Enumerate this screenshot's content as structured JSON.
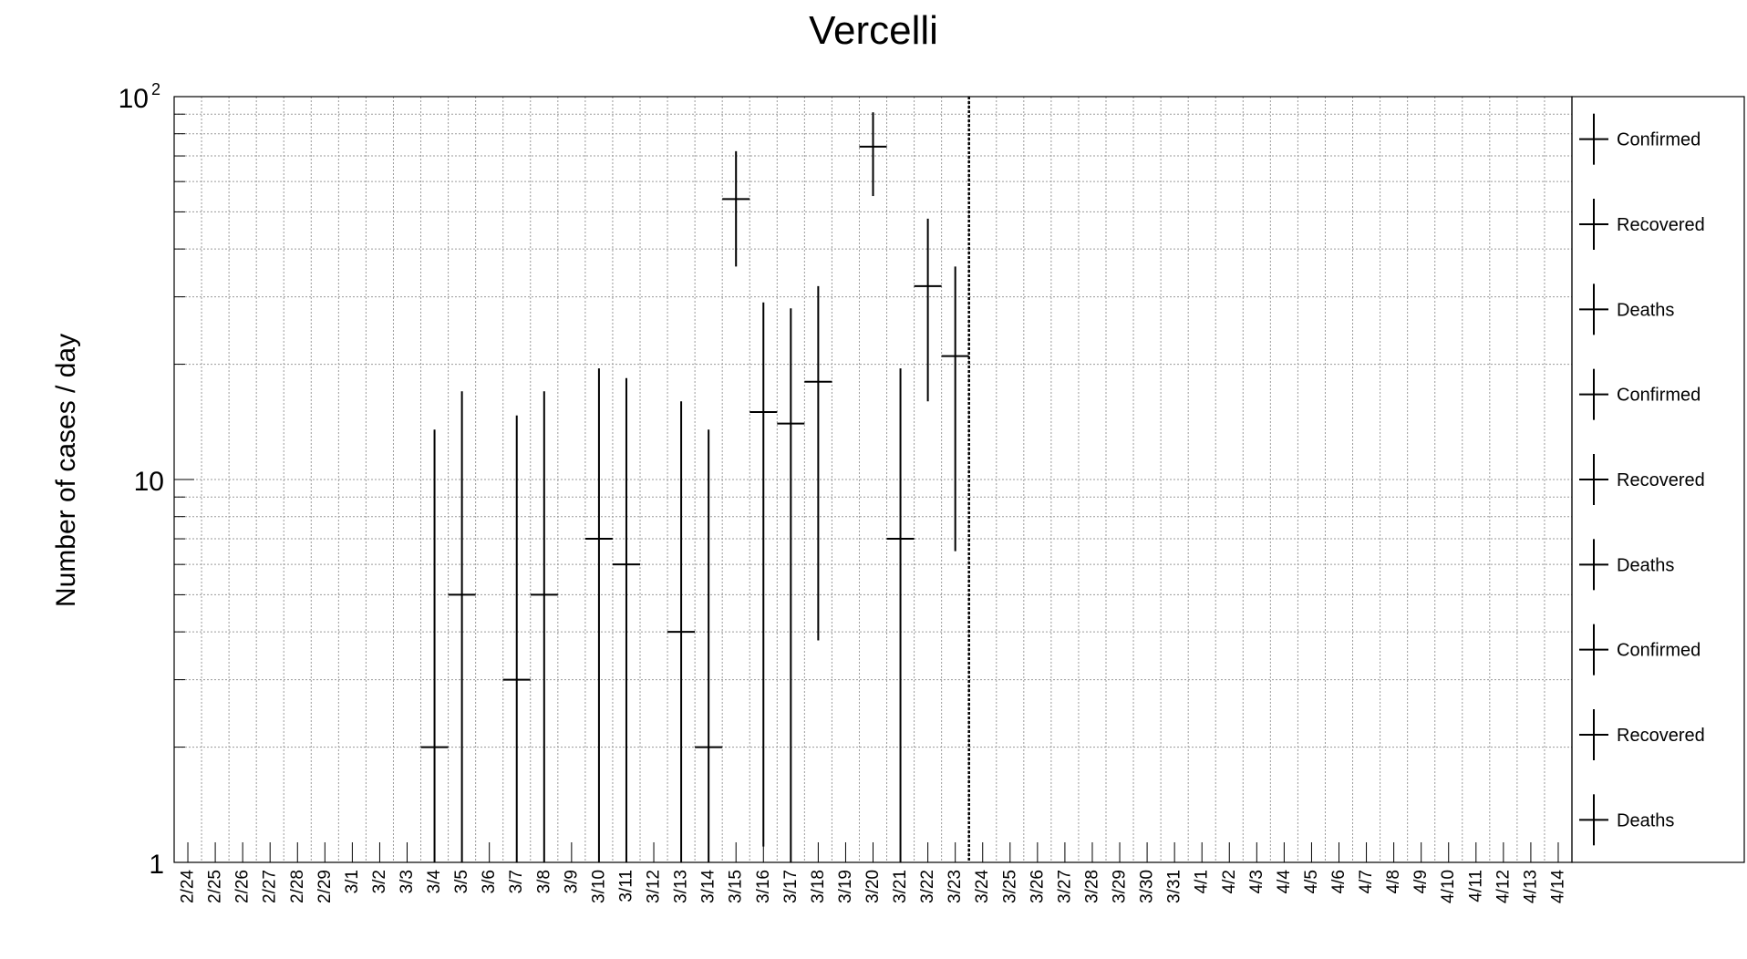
{
  "chart_data": {
    "type": "scatter",
    "title": "Vercelli",
    "xlabel": "",
    "ylabel": "Number of cases / day",
    "y_scale": "log",
    "ylim": [
      1,
      100
    ],
    "y_ticks": {
      "one": "1",
      "ten": "10",
      "hundred_base": "10",
      "hundred_exp": "2"
    },
    "grid": true,
    "legend_position": "right",
    "reference_line_date": "3/23",
    "dates": [
      "2/24",
      "2/25",
      "2/26",
      "2/27",
      "2/28",
      "2/29",
      "3/1",
      "3/2",
      "3/3",
      "3/4",
      "3/5",
      "3/6",
      "3/7",
      "3/8",
      "3/9",
      "3/10",
      "3/11",
      "3/12",
      "3/13",
      "3/14",
      "3/15",
      "3/16",
      "3/17",
      "3/18",
      "3/19",
      "3/20",
      "3/21",
      "3/22",
      "3/23",
      "3/24",
      "3/25",
      "3/26",
      "3/27",
      "3/28",
      "3/29",
      "3/30",
      "3/31",
      "4/1",
      "4/2",
      "4/3",
      "4/4",
      "4/5",
      "4/6",
      "4/7",
      "4/8",
      "4/9",
      "4/10",
      "4/11",
      "4/12",
      "4/13",
      "4/14"
    ],
    "series": [
      {
        "name": "Confirmed",
        "points": [
          {
            "x": "3/4",
            "y": 2,
            "y_low": 1,
            "y_high": 13.5
          },
          {
            "x": "3/5",
            "y": 5,
            "y_low": 1,
            "y_high": 17
          },
          {
            "x": "3/7",
            "y": 3,
            "y_low": 1,
            "y_high": 14.7
          },
          {
            "x": "3/8",
            "y": 5,
            "y_low": 1,
            "y_high": 17
          },
          {
            "x": "3/10",
            "y": 7,
            "y_low": 1,
            "y_high": 19.5
          },
          {
            "x": "3/11",
            "y": 6,
            "y_low": 1,
            "y_high": 18.4
          },
          {
            "x": "3/13",
            "y": 4,
            "y_low": 1,
            "y_high": 16
          },
          {
            "x": "3/14",
            "y": 2,
            "y_low": 1,
            "y_high": 13.5
          },
          {
            "x": "3/15",
            "y": 54,
            "y_low": 36,
            "y_high": 72
          },
          {
            "x": "3/16",
            "y": 15,
            "y_low": 1.1,
            "y_high": 29
          },
          {
            "x": "3/17",
            "y": 14,
            "y_low": 1,
            "y_high": 28
          },
          {
            "x": "3/18",
            "y": 18,
            "y_low": 3.8,
            "y_high": 32
          },
          {
            "x": "3/20",
            "y": 74,
            "y_low": 55,
            "y_high": 91
          },
          {
            "x": "3/21",
            "y": 7,
            "y_low": 1,
            "y_high": 19.5
          },
          {
            "x": "3/22",
            "y": 32,
            "y_low": 16,
            "y_high": 48
          },
          {
            "x": "3/23",
            "y": 21,
            "y_low": 6.5,
            "y_high": 36
          }
        ]
      }
    ],
    "legend": [
      "Confirmed",
      "Recovered",
      "Deaths",
      "Confirmed",
      "Recovered",
      "Deaths",
      "Confirmed",
      "Recovered",
      "Deaths"
    ]
  }
}
